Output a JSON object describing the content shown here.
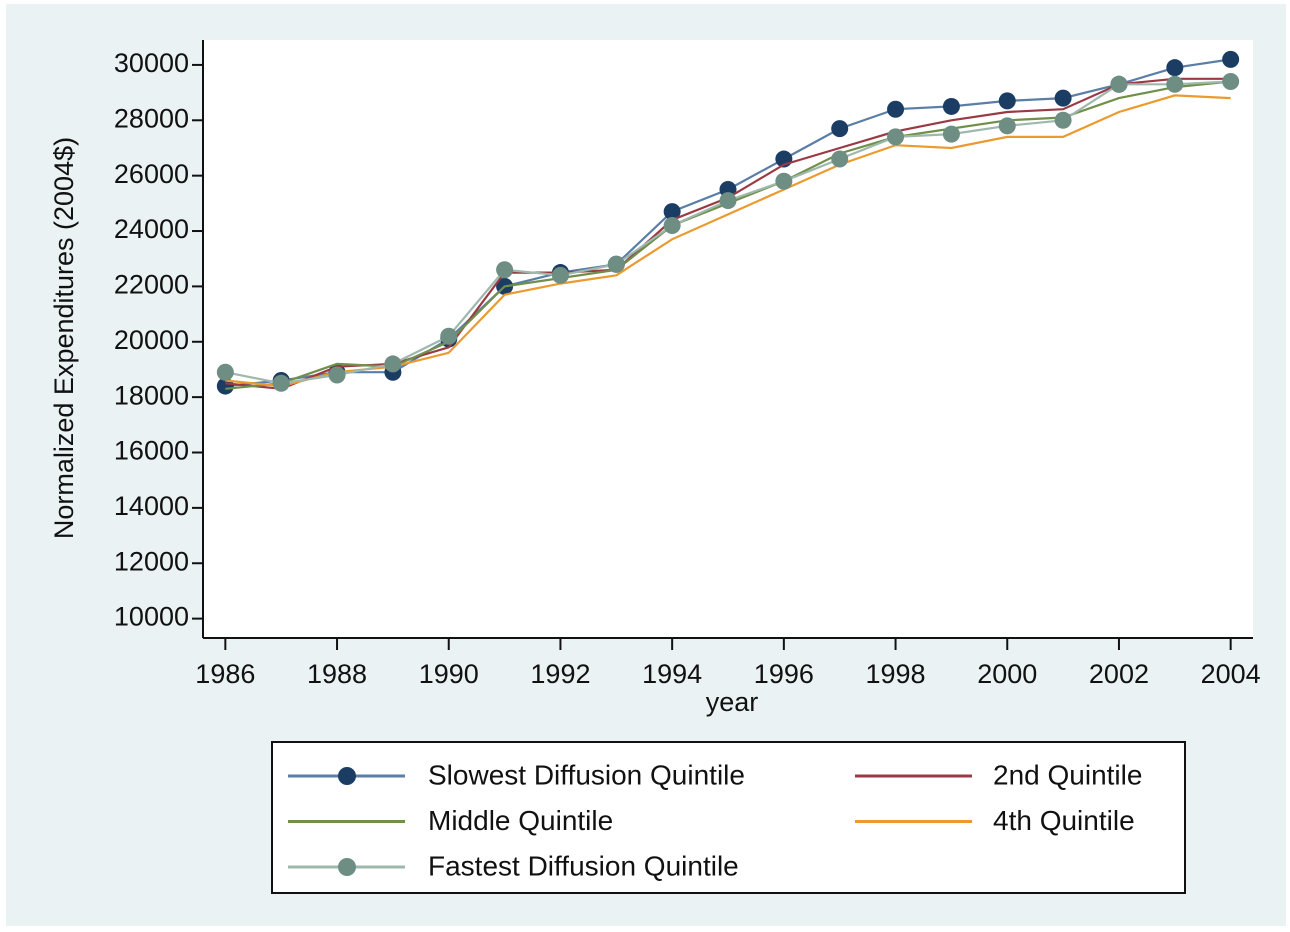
{
  "chart_data": {
    "type": "line",
    "x_label": "year",
    "y_label": "Normalized Expenditures (2004$)",
    "x": [
      1986,
      1987,
      1988,
      1989,
      1990,
      1991,
      1992,
      1993,
      1994,
      1995,
      1996,
      1997,
      1998,
      1999,
      2000,
      2001,
      2002,
      2003,
      2004
    ],
    "series": [
      {
        "name": "Slowest Diffusion Quintile",
        "color": "#5a7ea6",
        "marker_color": "#1c3d63",
        "markers": true,
        "values": [
          18400,
          18600,
          18900,
          18900,
          20100,
          22000,
          22500,
          22800,
          24700,
          25500,
          26600,
          27700,
          28400,
          28500,
          28700,
          28800,
          29300,
          29900,
          30200
        ]
      },
      {
        "name": "2nd Quintile",
        "color": "#9a3a44",
        "markers": false,
        "values": [
          18500,
          18300,
          19100,
          19200,
          19800,
          22500,
          22500,
          22600,
          24400,
          25200,
          26400,
          27000,
          27600,
          28000,
          28300,
          28400,
          29300,
          29500,
          29500
        ]
      },
      {
        "name": "Middle Quintile",
        "color": "#6f8f4a",
        "markers": false,
        "values": [
          18300,
          18500,
          19200,
          19100,
          20000,
          22000,
          22300,
          22600,
          24200,
          25000,
          25800,
          26800,
          27400,
          27700,
          28000,
          28100,
          28800,
          29200,
          29400
        ]
      },
      {
        "name": "4th Quintile",
        "color": "#eb9a2e",
        "markers": false,
        "values": [
          18600,
          18400,
          18900,
          19100,
          19600,
          21700,
          22100,
          22400,
          23700,
          24600,
          25500,
          26400,
          27100,
          27000,
          27400,
          27400,
          28300,
          28900,
          28800
        ]
      },
      {
        "name": "Fastest Diffusion Quintile",
        "color": "#9fb8ae",
        "marker_color": "#6e8e84",
        "markers": true,
        "values": [
          18900,
          18500,
          18800,
          19200,
          20200,
          22600,
          22400,
          22800,
          24200,
          25100,
          25800,
          26600,
          27400,
          27500,
          27800,
          28000,
          29300,
          29300,
          29400
        ]
      }
    ],
    "xlim": [
      1985.6,
      2004.4
    ],
    "xticks": [
      1986,
      1988,
      1990,
      1992,
      1994,
      1996,
      1998,
      2000,
      2002,
      2004
    ],
    "ylim": [
      9300,
      30900
    ],
    "yticks": [
      10000,
      12000,
      14000,
      16000,
      18000,
      20000,
      22000,
      24000,
      26000,
      28000,
      30000
    ],
    "grid": false,
    "legend_position": "bottom"
  }
}
